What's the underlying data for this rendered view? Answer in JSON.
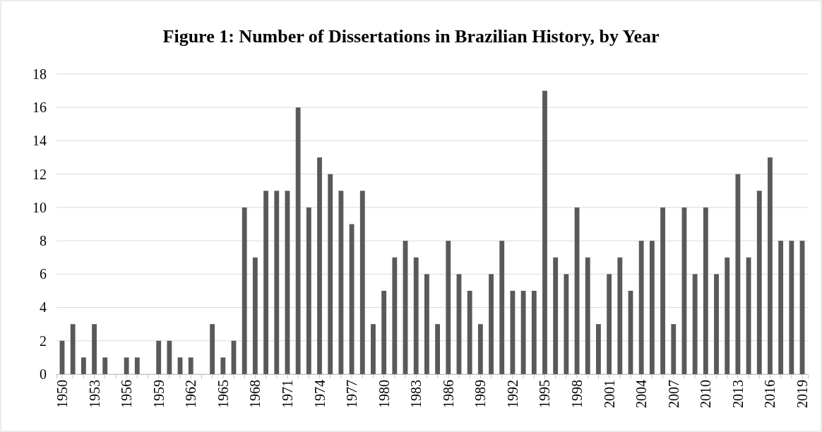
{
  "chart_data": {
    "type": "bar",
    "title": "Figure 1: Number of Dissertations in Brazilian History, by Year",
    "categories": [
      "1950",
      null,
      null,
      "1953",
      null,
      null,
      "1956",
      null,
      null,
      "1959",
      null,
      null,
      "1962",
      null,
      null,
      "1965",
      null,
      null,
      "1968",
      null,
      null,
      "1971",
      null,
      null,
      "1974",
      null,
      null,
      "1977",
      null,
      null,
      "1980",
      null,
      null,
      "1983",
      null,
      null,
      "1986",
      null,
      null,
      "1989",
      null,
      null,
      "1992",
      null,
      null,
      "1995",
      null,
      null,
      "1998",
      null,
      null,
      "2001",
      null,
      null,
      "2004",
      null,
      null,
      "2007",
      null,
      null,
      "2010",
      null,
      null,
      "2013",
      null,
      null,
      "2016",
      null,
      null,
      "2019"
    ],
    "values": [
      2,
      3,
      1,
      3,
      1,
      0,
      1,
      1,
      0,
      2,
      2,
      1,
      1,
      0,
      3,
      1,
      2,
      10,
      7,
      11,
      11,
      11,
      16,
      10,
      13,
      12,
      11,
      9,
      11,
      3,
      5,
      7,
      8,
      7,
      6,
      3,
      8,
      6,
      5,
      3,
      6,
      8,
      5,
      5,
      5,
      17,
      7,
      6,
      10,
      7,
      3,
      6,
      7,
      5,
      8,
      8,
      10,
      3,
      10,
      6,
      10,
      6,
      7,
      12,
      7,
      11,
      13,
      8,
      8,
      8
    ],
    "color": "#595959",
    "ylim": [
      0,
      18
    ],
    "yticks": [
      0,
      2,
      4,
      6,
      8,
      10,
      12,
      14,
      16,
      18
    ],
    "grid": "y"
  }
}
